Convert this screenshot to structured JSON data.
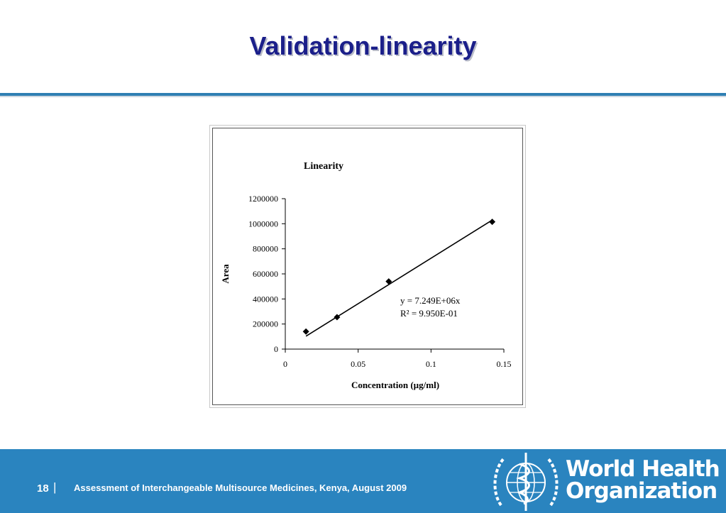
{
  "slide": {
    "title": "Validation-linearity",
    "page_number": "18",
    "page_separator": "|",
    "footer_text": "Assessment of Interchangeable Multisource Medicines,  Kenya, August  2009",
    "logo_text_line1": "World Health",
    "logo_text_line2": "Organization",
    "colors": {
      "title": "#1b1f8a",
      "footer": "#2a84bf",
      "rule": "#2f7fb3"
    }
  },
  "chart_data": {
    "type": "scatter",
    "title": "Linearity",
    "xlabel": "Concentration (µg/ml)",
    "ylabel": "Area",
    "xlim": [
      0,
      0.15
    ],
    "ylim": [
      0,
      1200000
    ],
    "x_ticks": [
      "0",
      "0.05",
      "0.1",
      "0.15"
    ],
    "x_tick_values": [
      0,
      0.05,
      0.1,
      0.15
    ],
    "y_ticks": [
      "0",
      "200000",
      "400000",
      "600000",
      "800000",
      "1000000",
      "1200000"
    ],
    "y_tick_values": [
      0,
      200000,
      400000,
      600000,
      800000,
      1000000,
      1200000
    ],
    "grid": false,
    "series": [
      {
        "x": [
          0.0142,
          0.0355,
          0.071,
          0.142
        ],
        "y": [
          140000,
          255000,
          540000,
          1015000
        ]
      }
    ],
    "trendline": {
      "slope": 7249000,
      "x_range": [
        0.0142,
        0.142
      ]
    },
    "annotations": [
      "y = 7.249E+06x",
      "R² = 9.950E-01"
    ]
  }
}
